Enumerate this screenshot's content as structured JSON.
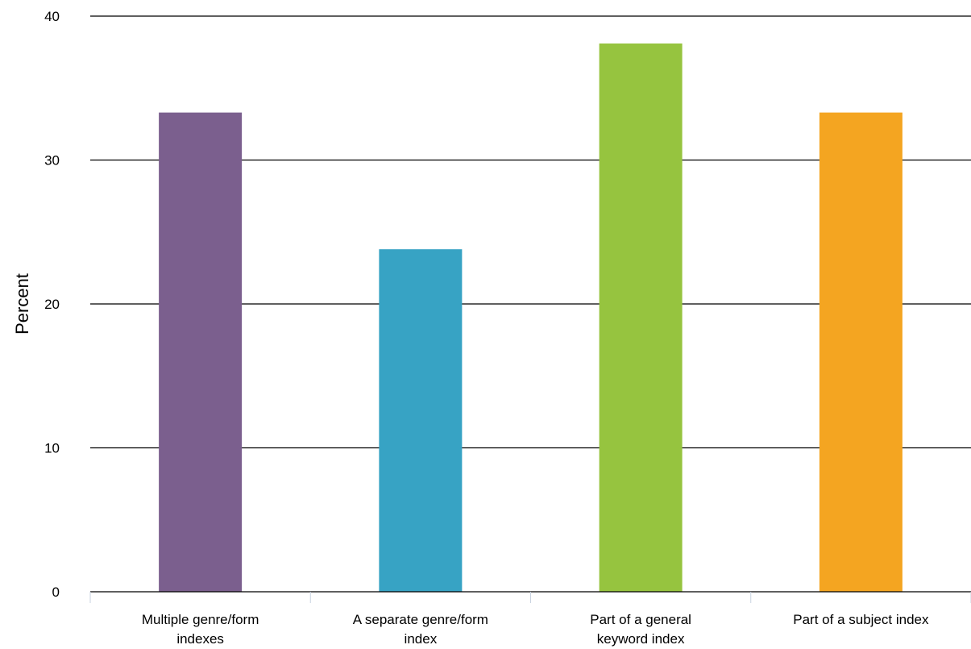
{
  "chart_data": {
    "type": "bar",
    "title": "",
    "xlabel": "",
    "ylabel": "Percent",
    "ylim": [
      0,
      40
    ],
    "yticks": [
      0,
      10,
      20,
      30,
      40
    ],
    "grid": true,
    "categories": [
      [
        "Multiple genre/form",
        "indexes"
      ],
      [
        "A separate genre/form",
        "index"
      ],
      [
        "Part of a general",
        "keyword index"
      ],
      [
        "Part of a subject index"
      ]
    ],
    "values": [
      33.3,
      23.8,
      38.1,
      33.3
    ],
    "colors": [
      "#7b5f8e",
      "#37a3c4",
      "#96c43f",
      "#f4a521"
    ]
  }
}
